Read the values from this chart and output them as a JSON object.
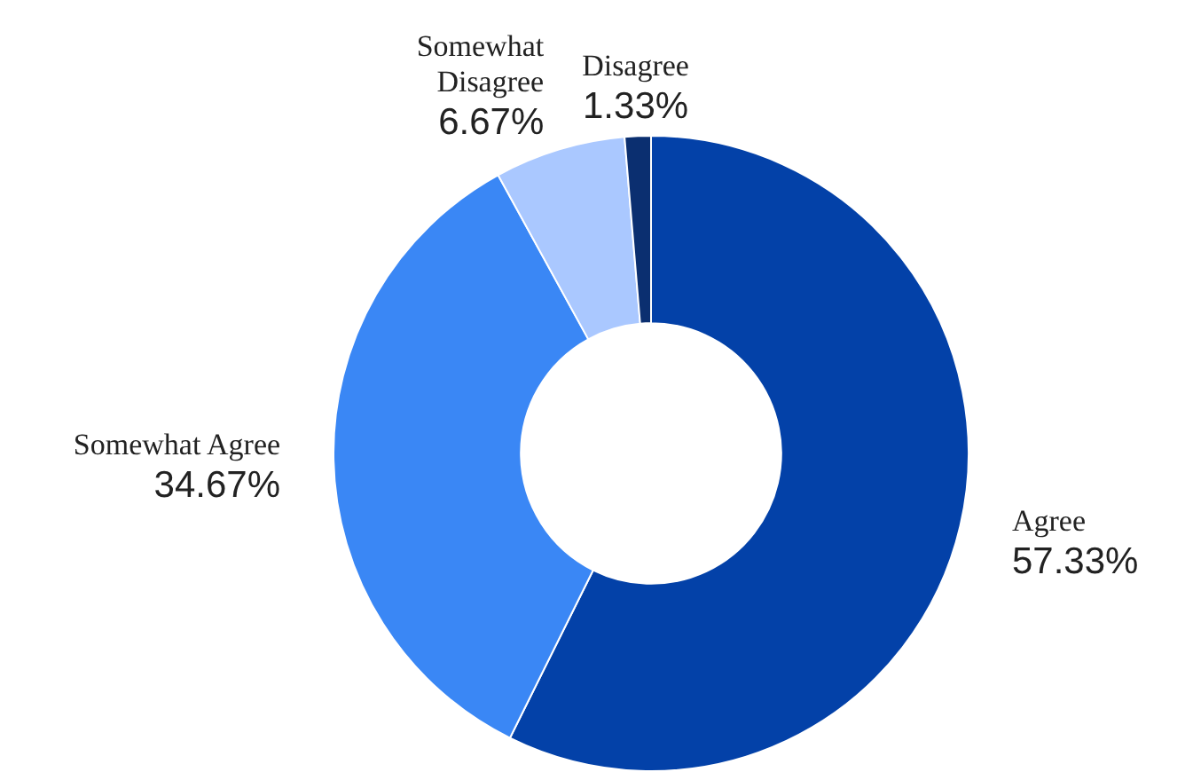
{
  "chart_data": {
    "type": "donut",
    "categories": [
      "Agree",
      "Somewhat Agree",
      "Somewhat Disagree",
      "Disagree"
    ],
    "values": [
      57.33,
      34.67,
      6.67,
      1.33
    ],
    "value_labels": [
      "57.33%",
      "34.67%",
      "6.67%",
      "1.33%"
    ],
    "colors": [
      "#0341a8",
      "#3a87f5",
      "#aac8ff",
      "#0b2f70"
    ],
    "legend": false
  }
}
